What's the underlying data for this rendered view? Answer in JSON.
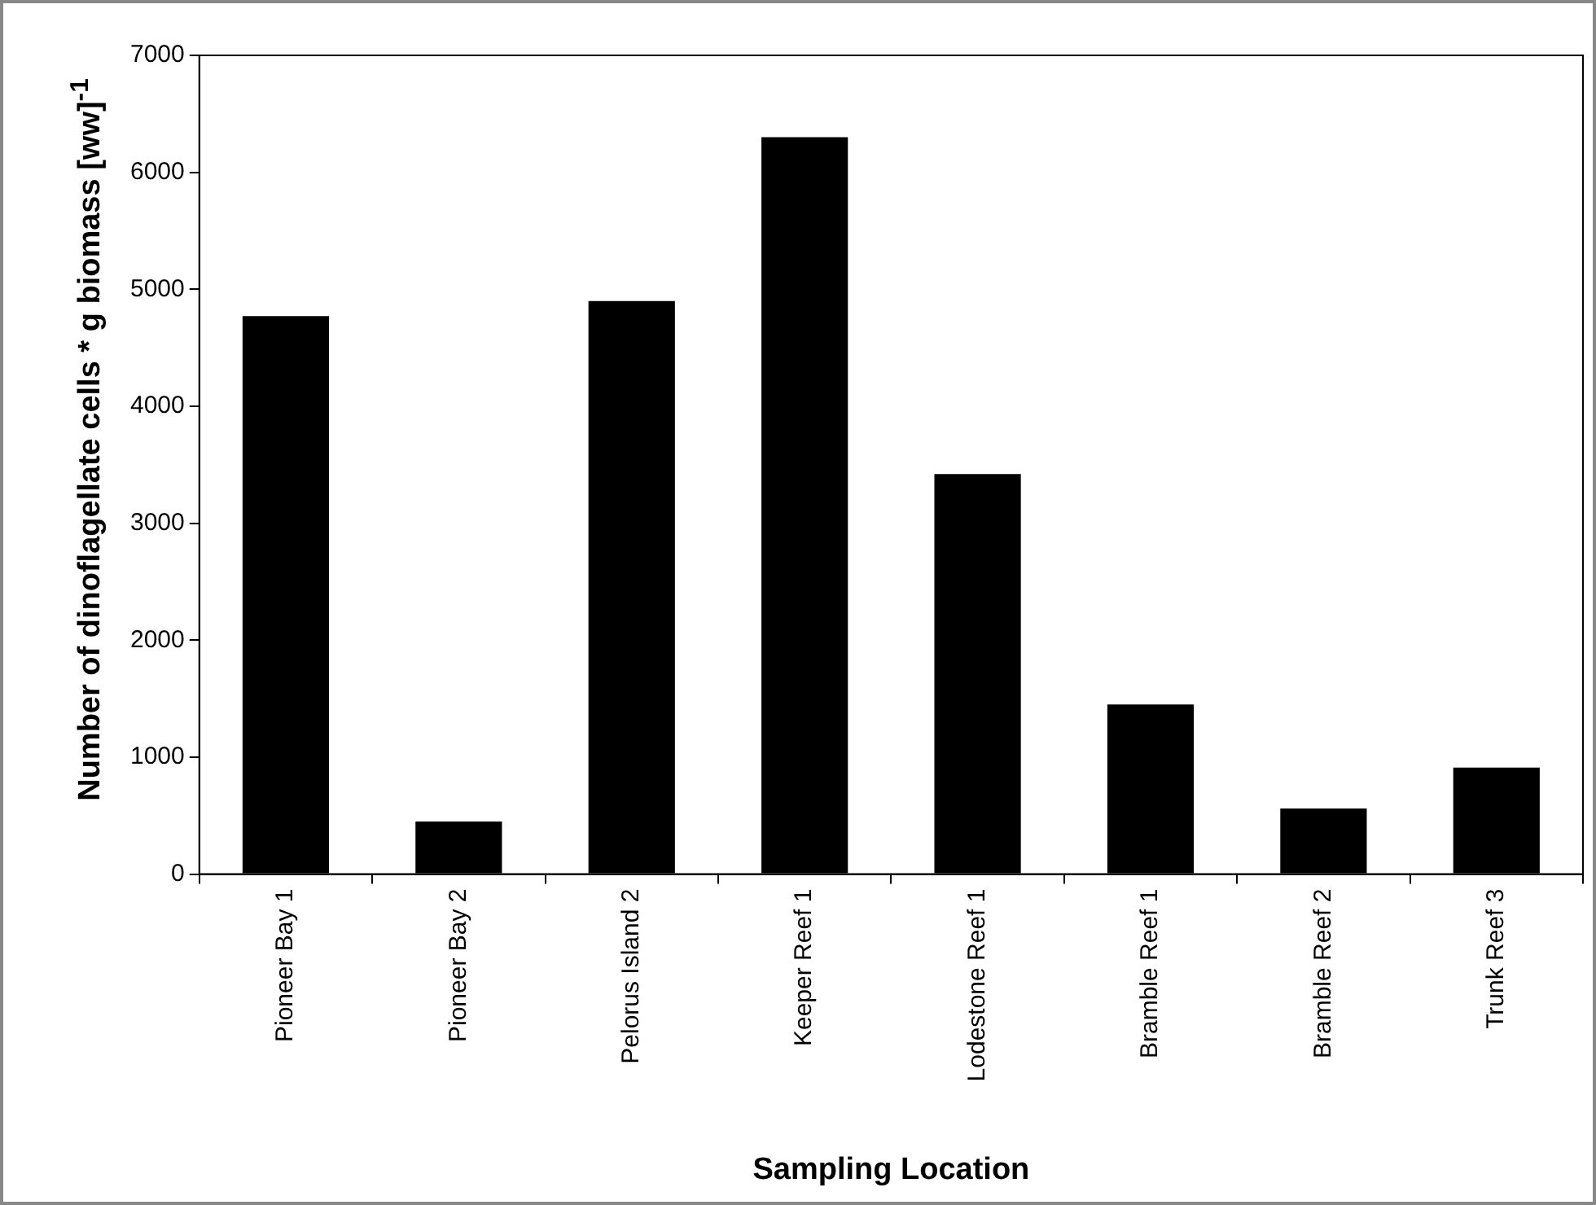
{
  "chart_data": {
    "type": "bar",
    "xlabel": "Sampling Location",
    "ylabel": "Number of dinoflagellate cells * g biomass [ww]$^{-1}$",
    "categories": [
      "Pioneer Bay 1",
      "Pioneer Bay 2",
      "Pelorus Island 2",
      "Keeper Reef 1",
      "Lodestone Reef 1",
      "Bramble Reef 1",
      "Bramble Reef 2",
      "Trunk Reef 3"
    ],
    "values": [
      4770,
      450,
      4900,
      6300,
      3420,
      1450,
      560,
      910
    ],
    "color": "#000000",
    "ylim": [
      0,
      7000
    ],
    "yticks": [
      0,
      1000,
      2000,
      3000,
      4000,
      5000,
      6000,
      7000
    ],
    "grid": false,
    "legend": false
  }
}
